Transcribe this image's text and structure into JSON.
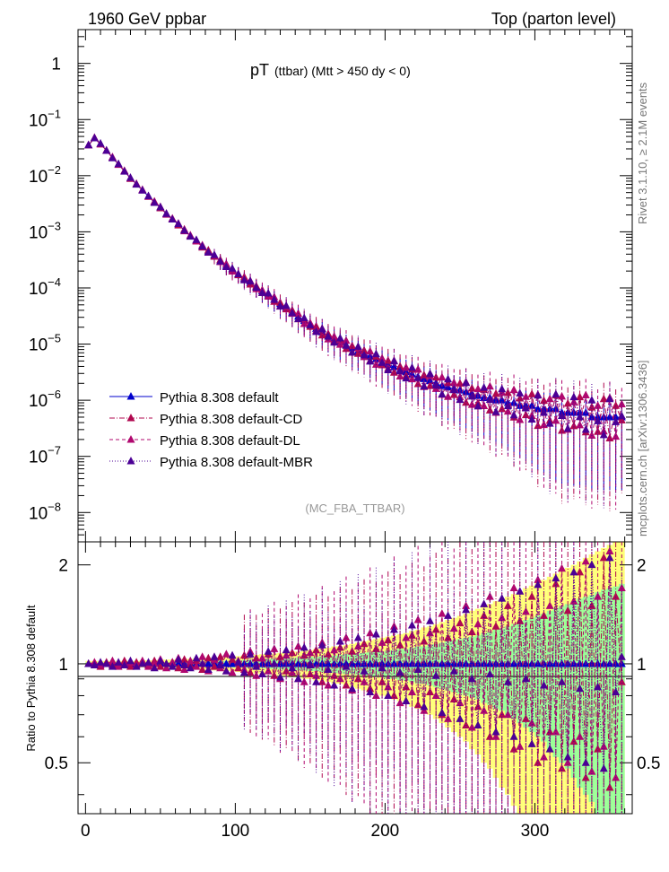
{
  "header": {
    "energy": "1960 GeV ppbar",
    "process": "Top (parton level)"
  },
  "plot_title": {
    "main": "pT",
    "sub": "(ttbar) (Mtt > 450 dy < 0)"
  },
  "analysis_label": "(MC_FBA_TTBAR)",
  "side_labels": {
    "rivet": "Rivet 3.1.10, ≥ 2.1M events",
    "source": "mcplots.cern.ch [arXiv:1306.3436]"
  },
  "ratio_ylabel": "Ratio to Pythia 8.308 default",
  "colors": {
    "default": "#0000cc",
    "cd": "#b0084f",
    "dl": "#b0086f",
    "mbr": "#4b0095",
    "band_inner": "#99ff99",
    "band_outer": "#ffff77"
  },
  "chart_data": {
    "type": "scatter",
    "xlim": [
      -5,
      365
    ],
    "ylim_main": [
      3e-09,
      4
    ],
    "ylim_ratio": [
      0.35,
      2.35
    ],
    "y_scale": "log",
    "grid": false,
    "legend_position": "lower-left",
    "x_ticks": [
      "0",
      "100",
      "200",
      "300"
    ],
    "main_y_ticks": [
      {
        "base": "1",
        "exp": ""
      },
      {
        "base": "10",
        "exp": "−1"
      },
      {
        "base": "10",
        "exp": "−2"
      },
      {
        "base": "10",
        "exp": "−3"
      },
      {
        "base": "10",
        "exp": "−4"
      },
      {
        "base": "10",
        "exp": "−5"
      },
      {
        "base": "10",
        "exp": "−6"
      },
      {
        "base": "10",
        "exp": "−7"
      },
      {
        "base": "10",
        "exp": "−8"
      }
    ],
    "ratio_y_ticks": [
      "2",
      "1",
      "0.5"
    ],
    "x": [
      2,
      6,
      10,
      14,
      18,
      22,
      26,
      30,
      34,
      38,
      42,
      46,
      50,
      54,
      58,
      62,
      66,
      70,
      74,
      78,
      82,
      86,
      90,
      94,
      98,
      102,
      106,
      110,
      114,
      118,
      122,
      126,
      130,
      134,
      138,
      142,
      146,
      150,
      154,
      158,
      162,
      166,
      170,
      174,
      178,
      182,
      186,
      190,
      194,
      198,
      202,
      206,
      210,
      214,
      218,
      222,
      226,
      230,
      234,
      238,
      242,
      246,
      250,
      254,
      258,
      262,
      266,
      270,
      274,
      278,
      282,
      286,
      290,
      294,
      298,
      302,
      306,
      310,
      314,
      318,
      322,
      326,
      330,
      334,
      338,
      342,
      346,
      350,
      354,
      358
    ],
    "series": [
      {
        "name": "Pythia 8.308 default",
        "style": "solid",
        "y": [
          0.035,
          0.047,
          0.037,
          0.028,
          0.021,
          0.016,
          0.012,
          0.009,
          0.0071,
          0.0055,
          0.0043,
          0.0034,
          0.0027,
          0.0021,
          0.0017,
          0.00135,
          0.00107,
          0.00085,
          0.00069,
          0.00055,
          0.00045,
          0.00037,
          0.0003,
          0.00025,
          0.00021,
          0.000175,
          0.000147,
          0.000123,
          0.000104,
          8.8e-05,
          7.4e-05,
          6.2e-05,
          5.2e-05,
          4.4e-05,
          3.7e-05,
          3.1e-05,
          2.6e-05,
          2.2e-05,
          1.88e-05,
          1.63e-05,
          1.42e-05,
          1.24e-05,
          1.09e-05,
          9.6e-06,
          8.5e-06,
          7.5e-06,
          6.7e-06,
          6e-06,
          5.4e-06,
          4.8e-06,
          4.3e-06,
          3.9e-06,
          3.5e-06,
          3.2e-06,
          2.9e-06,
          2.6e-06,
          2.4e-06,
          2.2e-06,
          2e-06,
          1.8e-06,
          1.7e-06,
          1.6e-06,
          1.5e-06,
          1.4e-06,
          1.3e-06,
          1.2e-06,
          1.1e-06,
          1.1e-06,
          1e-06,
          1e-06,
          9e-07,
          9e-07,
          8e-07,
          8e-07,
          8e-07,
          7e-07,
          7e-07,
          7e-07,
          7e-07,
          6e-07,
          6e-07,
          6e-07,
          6e-07,
          6e-07,
          5e-07,
          5e-07,
          5e-07,
          5e-07,
          5e-07,
          5e-07
        ],
        "ratio": [
          1,
          1,
          1,
          1,
          1,
          1,
          1,
          1,
          1,
          1,
          1,
          1,
          1,
          1,
          1,
          1,
          1,
          1,
          1,
          1,
          1,
          1,
          1,
          1,
          1,
          1,
          1,
          1,
          1,
          1,
          1,
          1,
          1,
          1,
          1,
          1,
          1,
          1,
          1,
          1,
          1,
          1,
          1,
          1,
          1,
          1,
          1,
          1,
          1,
          1,
          1,
          1,
          1,
          1,
          1,
          1,
          1,
          1,
          1,
          1,
          1,
          1,
          1,
          1,
          1,
          1,
          1,
          1,
          1,
          1,
          1,
          1,
          1,
          1,
          1,
          1,
          1,
          1,
          1,
          1,
          1,
          1,
          1,
          1,
          1,
          1,
          1,
          1,
          1,
          1
        ]
      },
      {
        "name": "Pythia 8.308 default-CD",
        "style": "dashdot",
        "ratio": [
          1.0,
          0.99,
          0.98,
          1.01,
          0.99,
          1.0,
          1.02,
          0.98,
          1.01,
          1.0,
          0.99,
          1.02,
          0.98,
          1.0,
          1.01,
          0.97,
          1.03,
          0.99,
          1.02,
          0.96,
          1.04,
          0.98,
          1.05,
          0.95,
          1.03,
          0.97,
          1.06,
          0.94,
          1.04,
          0.93,
          1.07,
          0.92,
          1.05,
          0.95,
          1.08,
          0.9,
          1.06,
          0.93,
          1.1,
          0.88,
          1.07,
          0.92,
          1.12,
          0.86,
          1.09,
          0.9,
          1.15,
          0.84,
          1.11,
          0.88,
          1.18,
          0.8,
          1.14,
          0.85,
          1.22,
          0.75,
          1.17,
          0.82,
          1.27,
          0.7,
          1.2,
          0.78,
          1.33,
          0.65,
          1.25,
          0.74,
          1.4,
          0.6,
          1.3,
          0.7,
          1.5,
          0.55,
          1.35,
          0.68,
          1.6,
          0.5,
          1.4,
          0.62,
          1.75,
          0.48,
          1.45,
          0.58,
          1.9,
          0.45,
          1.5,
          0.55,
          2.1,
          0.42,
          1.6,
          0.88
        ]
      },
      {
        "name": "Pythia 8.308 default-DL",
        "style": "dashed",
        "ratio": [
          1.0,
          1.01,
          0.99,
          1.0,
          1.02,
          0.98,
          1.0,
          1.01,
          0.99,
          1.02,
          0.98,
          1.0,
          1.03,
          0.97,
          1.01,
          1.04,
          0.96,
          1.02,
          0.98,
          1.05,
          0.95,
          1.03,
          0.97,
          1.07,
          0.94,
          1.02,
          0.96,
          1.09,
          0.92,
          1.04,
          0.95,
          1.11,
          0.9,
          1.06,
          0.94,
          1.13,
          0.88,
          1.08,
          0.92,
          1.16,
          0.86,
          1.1,
          0.9,
          1.2,
          0.83,
          1.13,
          0.88,
          1.24,
          0.8,
          1.16,
          0.85,
          1.3,
          0.76,
          1.2,
          0.82,
          1.36,
          0.72,
          1.24,
          0.8,
          1.42,
          0.68,
          1.28,
          0.76,
          1.5,
          0.64,
          1.32,
          0.72,
          1.6,
          0.6,
          1.38,
          0.7,
          1.7,
          0.56,
          1.44,
          0.66,
          1.8,
          0.52,
          1.5,
          0.62,
          1.95,
          0.5,
          1.55,
          0.6,
          2.05,
          0.47,
          1.6,
          0.56,
          2.2,
          0.45,
          1.7
        ]
      },
      {
        "name": "Pythia 8.308 default-MBR",
        "style": "dotted",
        "ratio": [
          1.0,
          0.99,
          1.01,
          1.0,
          0.98,
          1.01,
          0.99,
          1.02,
          0.98,
          1.0,
          1.01,
          0.97,
          1.02,
          1.0,
          0.98,
          1.03,
          0.99,
          0.97,
          1.04,
          1.0,
          0.96,
          1.05,
          0.99,
          0.95,
          1.06,
          1.01,
          0.94,
          1.07,
          0.98,
          0.93,
          1.09,
          1.0,
          0.91,
          1.1,
          0.97,
          0.9,
          1.12,
          0.99,
          0.88,
          1.14,
          0.96,
          0.86,
          1.17,
          0.98,
          0.84,
          1.2,
          0.95,
          0.82,
          1.23,
          0.97,
          0.8,
          1.27,
          0.94,
          0.77,
          1.31,
          0.96,
          0.74,
          1.35,
          0.92,
          0.71,
          1.4,
          0.95,
          0.68,
          1.46,
          0.9,
          0.65,
          1.52,
          0.93,
          0.62,
          1.58,
          0.88,
          0.6,
          1.66,
          0.9,
          0.57,
          1.74,
          0.86,
          0.55,
          1.82,
          0.88,
          0.52,
          1.9,
          0.84,
          0.5,
          2.0,
          0.85,
          0.48,
          2.1,
          0.82,
          1.05
        ]
      }
    ],
    "band_inner_halfwidth": [
      0.01,
      0.01,
      0.01,
      0.01,
      0.01,
      0.01,
      0.01,
      0.01,
      0.01,
      0.01,
      0.01,
      0.01,
      0.01,
      0.01,
      0.015,
      0.015,
      0.015,
      0.015,
      0.015,
      0.015,
      0.02,
      0.02,
      0.02,
      0.02,
      0.025,
      0.025,
      0.025,
      0.03,
      0.03,
      0.03,
      0.035,
      0.035,
      0.04,
      0.04,
      0.04,
      0.045,
      0.045,
      0.05,
      0.05,
      0.055,
      0.06,
      0.06,
      0.065,
      0.07,
      0.07,
      0.075,
      0.08,
      0.085,
      0.09,
      0.09,
      0.1,
      0.1,
      0.11,
      0.11,
      0.12,
      0.13,
      0.13,
      0.14,
      0.15,
      0.16,
      0.17,
      0.18,
      0.19,
      0.2,
      0.21,
      0.22,
      0.24,
      0.25,
      0.27,
      0.28,
      0.3,
      0.32,
      0.34,
      0.36,
      0.38,
      0.4,
      0.42,
      0.45,
      0.48,
      0.5,
      0.52,
      0.55,
      0.58,
      0.6,
      0.62,
      0.65,
      0.68,
      0.7,
      0.72,
      0.75
    ],
    "band_outer_halfwidth": [
      0.02,
      0.02,
      0.02,
      0.02,
      0.02,
      0.02,
      0.02,
      0.02,
      0.02,
      0.025,
      0.025,
      0.025,
      0.03,
      0.03,
      0.03,
      0.03,
      0.035,
      0.035,
      0.04,
      0.04,
      0.04,
      0.045,
      0.045,
      0.05,
      0.05,
      0.055,
      0.06,
      0.06,
      0.065,
      0.07,
      0.07,
      0.075,
      0.08,
      0.085,
      0.09,
      0.09,
      0.1,
      0.1,
      0.11,
      0.11,
      0.12,
      0.13,
      0.13,
      0.14,
      0.15,
      0.16,
      0.17,
      0.18,
      0.19,
      0.2,
      0.21,
      0.22,
      0.23,
      0.24,
      0.26,
      0.27,
      0.29,
      0.3,
      0.32,
      0.34,
      0.36,
      0.38,
      0.4,
      0.42,
      0.45,
      0.47,
      0.5,
      0.52,
      0.55,
      0.58,
      0.6,
      0.63,
      0.66,
      0.7,
      0.73,
      0.76,
      0.8,
      0.84,
      0.88,
      0.92,
      0.96,
      1.0,
      1.05,
      1.1,
      1.15,
      1.2,
      1.25,
      1.3,
      1.35,
      1.4
    ]
  }
}
